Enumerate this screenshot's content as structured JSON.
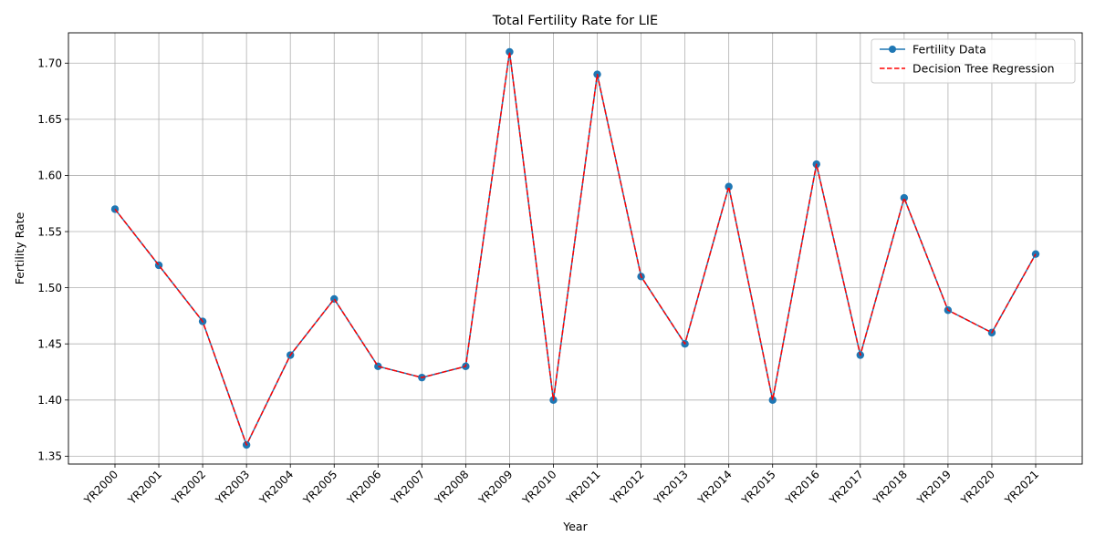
{
  "chart_data": {
    "type": "line",
    "title": "Total Fertility Rate for LIE",
    "xlabel": "Year",
    "ylabel": "Fertility Rate",
    "categories": [
      "YR2000",
      "YR2001",
      "YR2002",
      "YR2003",
      "YR2004",
      "YR2005",
      "YR2006",
      "YR2007",
      "YR2008",
      "YR2009",
      "YR2010",
      "YR2011",
      "YR2012",
      "YR2013",
      "YR2014",
      "YR2015",
      "YR2016",
      "YR2017",
      "YR2018",
      "YR2019",
      "YR2020",
      "YR2021"
    ],
    "ylim": [
      1.343,
      1.727
    ],
    "yticks": [
      "1.35",
      "1.40",
      "1.45",
      "1.50",
      "1.55",
      "1.60",
      "1.65",
      "1.70"
    ],
    "grid": true,
    "legend_position": "top-right",
    "series": [
      {
        "name": "Fertility Data",
        "style": "solid line with circle markers",
        "color": "#1f77b4",
        "values": [
          1.57,
          1.52,
          1.47,
          1.36,
          1.44,
          1.49,
          1.43,
          1.42,
          1.43,
          1.71,
          1.4,
          1.69,
          1.51,
          1.45,
          1.59,
          1.4,
          1.61,
          1.44,
          1.58,
          1.48,
          1.46,
          1.53
        ]
      },
      {
        "name": "Decision Tree Regression",
        "style": "dashed line",
        "color": "#ff0000",
        "values": [
          1.57,
          1.52,
          1.47,
          1.36,
          1.44,
          1.49,
          1.43,
          1.42,
          1.43,
          1.71,
          1.4,
          1.69,
          1.51,
          1.45,
          1.59,
          1.4,
          1.61,
          1.44,
          1.58,
          1.48,
          1.46,
          1.53
        ]
      }
    ]
  }
}
